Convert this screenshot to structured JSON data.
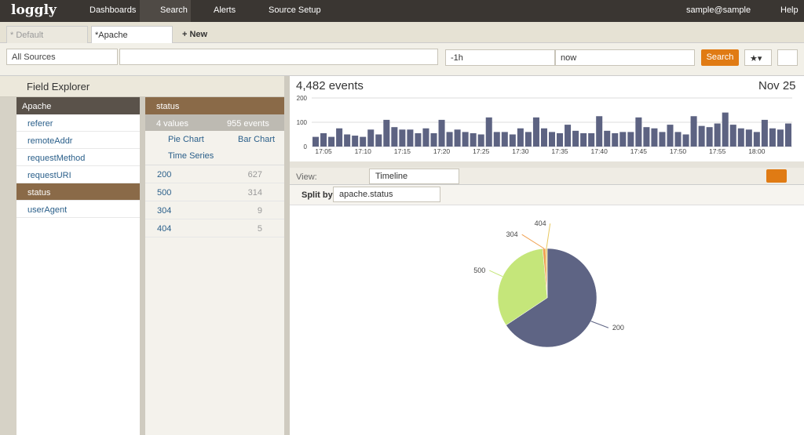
{
  "nav": {
    "logo": "loggly",
    "items": [
      "Dashboards",
      "Search",
      "Alerts",
      "Source Setup"
    ],
    "user": "sample@sample",
    "help": "Help"
  },
  "tabs": {
    "items": [
      "* Default",
      "*Apache"
    ],
    "new": "New"
  },
  "search_bar": {
    "source": "All Sources",
    "from": "-1h",
    "to": "now",
    "button": "Search"
  },
  "field_explorer": {
    "title": "Field Explorer",
    "group": "Apache",
    "fields": [
      "referer",
      "remoteAddr",
      "requestMethod",
      "requestURI",
      "status",
      "userAgent"
    ]
  },
  "field_panel": {
    "title": "status",
    "values_count": "4 values",
    "events_count": "955 events",
    "links": [
      "Pie Chart",
      "Bar Chart",
      "Time Series"
    ],
    "rows": [
      {
        "value": "200",
        "count": 627
      },
      {
        "value": "500",
        "count": 314
      },
      {
        "value": "304",
        "count": 9
      },
      {
        "value": "404",
        "count": 5
      }
    ]
  },
  "results": {
    "events": "4,482 events",
    "date": "Nov 25",
    "view_label": "View:",
    "view": "Timeline",
    "split_label": "Split by:",
    "split": "apache.status"
  },
  "chart_data": [
    {
      "type": "bar",
      "color": "#5d6382",
      "ylim": [
        0,
        200
      ],
      "yticks": [
        0,
        100,
        200
      ],
      "grid": true,
      "categories": [
        null,
        "17:05",
        null,
        null,
        null,
        null,
        "17:10",
        null,
        null,
        null,
        null,
        "17:15",
        null,
        null,
        null,
        null,
        "17:20",
        null,
        null,
        null,
        null,
        "17:25",
        null,
        null,
        null,
        null,
        "17:30",
        null,
        null,
        null,
        null,
        "17:35",
        null,
        null,
        null,
        null,
        "17:40",
        null,
        null,
        null,
        null,
        "17:45",
        null,
        null,
        null,
        null,
        "17:50",
        null,
        null,
        null,
        null,
        "17:55",
        null,
        null,
        null,
        null,
        "18:00",
        null,
        null,
        null,
        null
      ],
      "values": [
        40,
        55,
        40,
        75,
        50,
        45,
        40,
        70,
        50,
        110,
        80,
        70,
        70,
        55,
        75,
        55,
        110,
        60,
        70,
        60,
        55,
        50,
        120,
        60,
        60,
        50,
        75,
        60,
        120,
        75,
        60,
        55,
        90,
        65,
        55,
        55,
        125,
        65,
        55,
        60,
        60,
        120,
        80,
        75,
        60,
        90,
        60,
        50,
        125,
        85,
        80,
        95,
        140,
        90,
        75,
        70,
        60,
        110,
        75,
        70,
        95
      ]
    },
    {
      "type": "pie",
      "categories": [
        "200",
        "500",
        "304",
        "404"
      ],
      "values": [
        627,
        314,
        9,
        5
      ],
      "colors": [
        "#5e6484",
        "#c5e67a",
        "#f0a050",
        "#e8c860"
      ]
    }
  ]
}
